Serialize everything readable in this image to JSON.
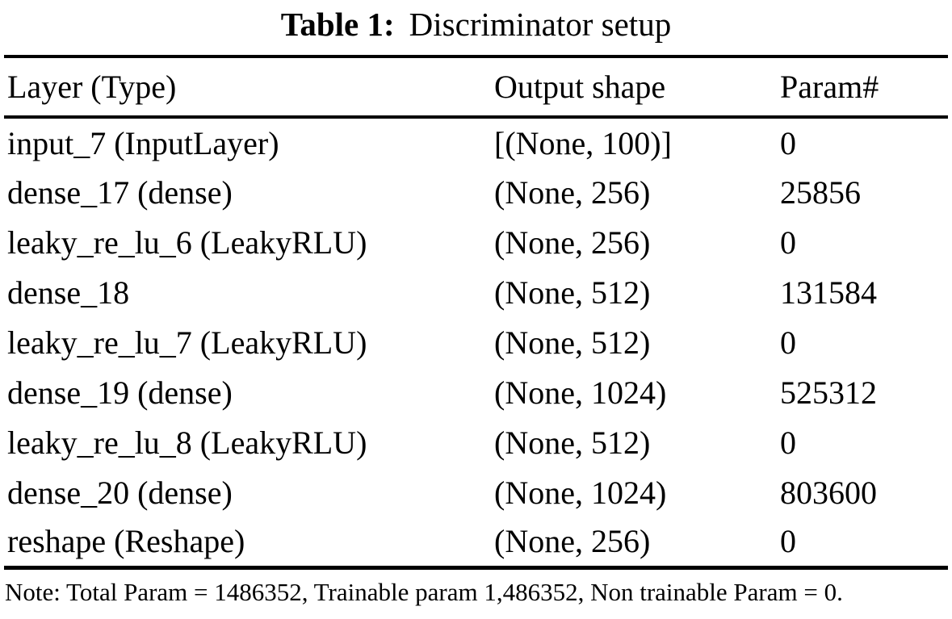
{
  "caption": {
    "label": "Table 1:",
    "title": "Discriminator setup"
  },
  "table": {
    "columns": [
      "Layer (Type)",
      "Output shape",
      "Param#"
    ],
    "rows": [
      [
        "input_7 (InputLayer)",
        "[(None, 100)]",
        "0"
      ],
      [
        "dense_17 (dense)",
        "(None, 256)",
        "25856"
      ],
      [
        "leaky_re_lu_6 (LeakyRLU)",
        "(None, 256)",
        "0"
      ],
      [
        "dense_18",
        "(None, 512)",
        "131584"
      ],
      [
        "leaky_re_lu_7 (LeakyRLU)",
        "(None, 512)",
        "0"
      ],
      [
        "dense_19 (dense)",
        "(None, 1024)",
        "525312"
      ],
      [
        "leaky_re_lu_8 (LeakyRLU)",
        "(None, 512)",
        "0"
      ],
      [
        "dense_20 (dense)",
        "(None, 1024)",
        "803600"
      ],
      [
        "reshape (Reshape)",
        "(None, 256)",
        "0"
      ]
    ]
  },
  "note": "Note: Total Param = 1486352, Trainable param 1,486352, Non trainable Param = 0."
}
